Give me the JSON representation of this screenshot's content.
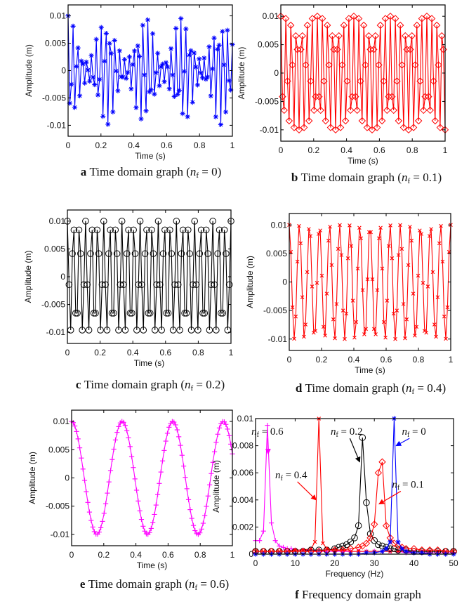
{
  "chart_data": [
    {
      "id": "a",
      "type": "line",
      "caption_letter": "a",
      "caption_text": "Time domain graph (",
      "caption_var": "n",
      "caption_sub": "f",
      "caption_tail": " = 0)",
      "xlabel": "Time (s)",
      "ylabel": "Amplitude (m)",
      "xlim": [
        0,
        1
      ],
      "ylim": [
        -0.012,
        0.012
      ],
      "xticks": [
        "0",
        "0.2",
        "0.4",
        "0.6",
        "0.8",
        "1"
      ],
      "xtick_values": [
        0,
        0.2,
        0.4,
        0.6,
        0.8,
        1
      ],
      "yticks": [
        "-0.01",
        "-0.005",
        "0",
        "0.005",
        "0.01"
      ],
      "ytick_values": [
        -0.01,
        -0.005,
        0,
        0.005,
        0.01
      ],
      "series": [
        {
          "name": "n_f = 0",
          "color": "#0000ff",
          "marker": "asterisk",
          "amplitude": 0.01,
          "frequency_hz": 35,
          "samples": 100,
          "envelope_beat_hz": 4.3
        }
      ]
    },
    {
      "id": "b",
      "type": "line",
      "caption_letter": "b",
      "caption_text": "Time domain graph (",
      "caption_var": "n",
      "caption_sub": "f",
      "caption_tail": " = 0.1)",
      "xlabel": "Time (s)",
      "ylabel": "Amplitude (m)",
      "xlim": [
        0,
        1
      ],
      "ylim": [
        -0.012,
        0.012
      ],
      "xticks": [
        "0",
        "0.2",
        "0.4",
        "0.6",
        "0.8",
        "1"
      ],
      "xtick_values": [
        0,
        0.2,
        0.4,
        0.6,
        0.8,
        1
      ],
      "yticks": [
        "-0.01",
        "-0.005",
        "0",
        "0.005",
        "0.01"
      ],
      "ytick_values": [
        -0.01,
        -0.005,
        0,
        0.005,
        0.01
      ],
      "series": [
        {
          "name": "n_f = 0.1",
          "color": "#ff0000",
          "marker": "diamond",
          "amplitude": 0.01,
          "frequency_hz": 31.5,
          "samples": 100,
          "envelope_beat_hz": 0
        }
      ]
    },
    {
      "id": "c",
      "type": "line",
      "caption_letter": "c",
      "caption_text": "Time domain graph (",
      "caption_var": "n",
      "caption_sub": "f",
      "caption_tail": " = 0.2)",
      "xlabel": "Time (s)",
      "ylabel": "Amplitude (m)",
      "xlim": [
        0,
        1
      ],
      "ylim": [
        -0.012,
        0.012
      ],
      "xticks": [
        "0",
        "0.2",
        "0.4",
        "0.6",
        "0.8",
        "1"
      ],
      "xtick_values": [
        0,
        0.2,
        0.4,
        0.6,
        0.8,
        1
      ],
      "yticks": [
        "-0.01",
        "-0.005",
        "0",
        "0.005",
        "0.01"
      ],
      "ytick_values": [
        -0.01,
        -0.005,
        0,
        0.005,
        0.01
      ],
      "series": [
        {
          "name": "n_f = 0.2",
          "color": "#000000",
          "marker": "circle",
          "amplitude": 0.01,
          "frequency_hz": 27,
          "samples": 100,
          "envelope_beat_hz": 0
        }
      ]
    },
    {
      "id": "d",
      "type": "line",
      "caption_letter": "d",
      "caption_text": "Time domain graph (",
      "caption_var": "n",
      "caption_sub": "f",
      "caption_tail": " = 0.4)",
      "xlabel": "Time (s)",
      "ylabel": "Amplitude (m)",
      "xlim": [
        0,
        1
      ],
      "ylim": [
        -0.012,
        0.012
      ],
      "xticks": [
        "0",
        "0.2",
        "0.4",
        "0.6",
        "0.8",
        "1"
      ],
      "xtick_values": [
        0,
        0.2,
        0.4,
        0.6,
        0.8,
        1
      ],
      "yticks": [
        "-0.01",
        "-0.005",
        "0",
        "0.005",
        "0.01"
      ],
      "ytick_values": [
        -0.01,
        -0.005,
        0,
        0.005,
        0.01
      ],
      "series": [
        {
          "name": "n_f = 0.4",
          "color": "#ff0000",
          "marker": "x",
          "amplitude": 0.01,
          "frequency_hz": 16,
          "samples": 100,
          "envelope_beat_hz": 0
        }
      ]
    },
    {
      "id": "e",
      "type": "line",
      "caption_letter": "e",
      "caption_text": "Time domain graph (",
      "caption_var": "n",
      "caption_sub": "f",
      "caption_tail": " = 0.6)",
      "xlabel": "Time (s)",
      "ylabel": "Amplitude (m)",
      "xlim": [
        0,
        1
      ],
      "ylim": [
        -0.012,
        0.012
      ],
      "xticks": [
        "0",
        "0.2",
        "0.4",
        "0.6",
        "0.8",
        "1"
      ],
      "xtick_values": [
        0,
        0.2,
        0.4,
        0.6,
        0.8,
        1
      ],
      "yticks": [
        "-0.01",
        "-0.005",
        "0",
        "0.005",
        "0.01"
      ],
      "ytick_values": [
        -0.01,
        -0.005,
        0,
        0.005,
        0.01
      ],
      "series": [
        {
          "name": "n_f = 0.6",
          "color": "#ff00ff",
          "marker": "plus",
          "amplitude": 0.01,
          "frequency_hz": 3.18,
          "samples": 100,
          "envelope_beat_hz": 0
        }
      ]
    },
    {
      "id": "f",
      "type": "line",
      "caption_letter": "f",
      "caption_text": "Frequency domain graph",
      "caption_var": "",
      "caption_sub": "",
      "caption_tail": "",
      "xlabel": "Frequency (Hz)",
      "ylabel": "Amplitude (m)",
      "xlim": [
        0,
        50
      ],
      "ylim": [
        0,
        0.01
      ],
      "xticks": [
        "0",
        "10",
        "20",
        "30",
        "40",
        "50"
      ],
      "xtick_values": [
        0,
        10,
        20,
        30,
        40,
        50
      ],
      "yticks": [
        "0",
        "0.002",
        "0.004",
        "0.006",
        "0.008",
        "0.01"
      ],
      "ytick_values": [
        0,
        0.002,
        0.004,
        0.006,
        0.008,
        0.01
      ],
      "series": [
        {
          "name": "n_f = 0.6",
          "color": "#ff00ff",
          "marker": "plus",
          "x": [
            0,
            1,
            2,
            3,
            4,
            5,
            6,
            7,
            8,
            9,
            10,
            12,
            14,
            16,
            18,
            20,
            22,
            24,
            26,
            28,
            30,
            32,
            34,
            36,
            38,
            40,
            42,
            44,
            46,
            48,
            50
          ],
          "y": [
            0.001,
            0.001,
            0.0017,
            0.0095,
            0.0023,
            0.001,
            0.0006,
            0.0005,
            0.0004,
            0.0004,
            0.0003,
            0.0003,
            0.0003,
            0.0002,
            0.0002,
            0.0002,
            0.0002,
            0.0002,
            0.0002,
            0.0002,
            0.0002,
            0.0002,
            0.0002,
            0.0002,
            0.0001,
            0.0001,
            0.0001,
            0.0001,
            0.0001,
            0.0001,
            0.0001
          ]
        },
        {
          "name": "n_f = 0.4",
          "color": "#ff0000",
          "marker": "x",
          "x": [
            0,
            2,
            4,
            6,
            8,
            10,
            12,
            14,
            15,
            16,
            17,
            18,
            20,
            22,
            24,
            26,
            28,
            30,
            32,
            34,
            36,
            38,
            40,
            42,
            44,
            46,
            48,
            50
          ],
          "y": [
            0.0002,
            0.0002,
            0.0002,
            0.0002,
            0.0002,
            0.0003,
            0.0003,
            0.0004,
            0.0009,
            0.01,
            0.0008,
            0.0004,
            0.0003,
            0.0003,
            0.0002,
            0.0002,
            0.0002,
            0.0002,
            0.0002,
            0.0002,
            0.0002,
            0.0002,
            0.0002,
            0.0002,
            0.0002,
            0.0002,
            0.0002,
            0.0002
          ]
        },
        {
          "name": "n_f = 0.2",
          "color": "#000000",
          "marker": "circle",
          "x": [
            0,
            2,
            4,
            6,
            8,
            10,
            12,
            14,
            16,
            18,
            20,
            21,
            22,
            23,
            24,
            25,
            26,
            27,
            28,
            29,
            30,
            31,
            32,
            33,
            34,
            35,
            36,
            38,
            40,
            42,
            44,
            46,
            48,
            50
          ],
          "y": [
            0.0002,
            0.0002,
            0.0002,
            0.0002,
            0.0002,
            0.0002,
            0.0002,
            0.0003,
            0.0003,
            0.0003,
            0.0004,
            0.0005,
            0.0006,
            0.0007,
            0.0009,
            0.0012,
            0.0021,
            0.0086,
            0.0038,
            0.0015,
            0.001,
            0.0007,
            0.0006,
            0.0005,
            0.0004,
            0.0004,
            0.0003,
            0.0003,
            0.0002,
            0.0002,
            0.0002,
            0.0002,
            0.0002,
            0.0002
          ]
        },
        {
          "name": "n_f = 0.1",
          "color": "#ff0000",
          "marker": "diamond",
          "x": [
            0,
            2,
            4,
            6,
            8,
            10,
            12,
            14,
            16,
            18,
            20,
            22,
            24,
            26,
            27,
            28,
            29,
            30,
            31,
            32,
            33,
            34,
            35,
            36,
            37,
            38,
            40,
            42,
            44,
            46,
            48,
            50
          ],
          "y": [
            0.0002,
            0.0002,
            0.0002,
            0.0002,
            0.0002,
            0.0002,
            0.0002,
            0.0002,
            0.0002,
            0.0003,
            0.0003,
            0.0003,
            0.0004,
            0.0005,
            0.0006,
            0.0008,
            0.0012,
            0.0022,
            0.006,
            0.0068,
            0.0021,
            0.0012,
            0.0008,
            0.0006,
            0.0005,
            0.0004,
            0.0004,
            0.0003,
            0.0003,
            0.0003,
            0.0002,
            0.0002
          ]
        },
        {
          "name": "n_f = 0",
          "color": "#0000ff",
          "marker": "asterisk",
          "x": [
            0,
            2,
            4,
            6,
            8,
            10,
            12,
            14,
            16,
            18,
            20,
            22,
            24,
            26,
            28,
            30,
            32,
            33,
            34,
            35,
            36,
            37,
            38,
            40,
            42,
            44,
            46,
            48,
            50
          ],
          "y": [
            0,
            0,
            0,
            0,
            0,
            0,
            0,
            0,
            0,
            0,
            0,
            0,
            0,
            0,
            0.0001,
            0.0001,
            0.0002,
            0.0004,
            0.0009,
            0.01,
            0.0009,
            0.0004,
            0.0002,
            0.0001,
            0.0001,
            0,
            0,
            0,
            0
          ]
        }
      ],
      "annotations": [
        {
          "var": "n",
          "sub": "f",
          "text": " = 0.6",
          "color": "#ff00ff",
          "text_at": [
            3,
            0.0088
          ],
          "arrow_to": [
            3.2,
            0.0074
          ]
        },
        {
          "var": "n",
          "sub": "f",
          "text": " = 0.4",
          "color": "#ff0000",
          "text_at": [
            9,
            0.0056
          ],
          "arrow_to": [
            15.3,
            0.004
          ]
        },
        {
          "var": "n",
          "sub": "f",
          "text": " = 0.2",
          "color": "#000000",
          "text_at": [
            23,
            0.0088
          ],
          "arrow_to": [
            26.3,
            0.0068
          ]
        },
        {
          "var": "n",
          "sub": "f",
          "text": " = 0",
          "color": "#0000ff",
          "text_at": [
            40,
            0.0088
          ],
          "arrow_to": [
            35.5,
            0.008
          ]
        },
        {
          "var": "n",
          "sub": "f",
          "text": " = 0.1",
          "color": "#ff0000",
          "text_at": [
            38.5,
            0.0049
          ],
          "arrow_to": [
            31.2,
            0.0037
          ]
        }
      ]
    }
  ]
}
